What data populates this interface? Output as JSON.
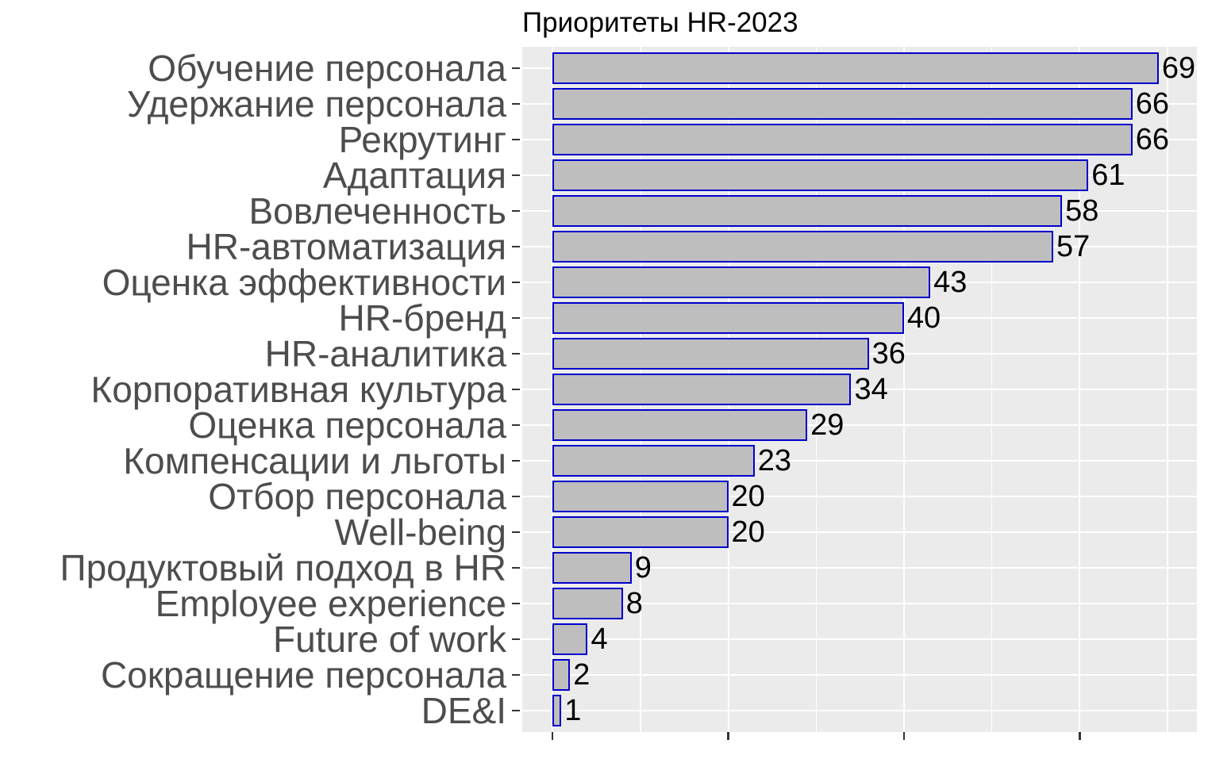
{
  "title": "Приоритеты HR-2023",
  "chart_data": {
    "type": "bar",
    "orientation": "horizontal",
    "title": "Приоритеты HR-2023",
    "categories": [
      "Обучение персонала",
      "Удержание персонала",
      "Рекрутинг",
      "Адаптация",
      "Вовлеченность",
      "HR-автоматизация",
      "Оценка эффективности",
      "HR-бренд",
      "HR-аналитика",
      "Корпоративная культура",
      "Оценка персонала",
      "Компенсации и льготы",
      "Отбор персонала",
      "Well-being",
      "Продуктовый подход в HR",
      "Employee experience",
      "Future of work",
      "Сокращение персонала",
      "DE&I"
    ],
    "values": [
      69,
      66,
      66,
      61,
      58,
      57,
      43,
      40,
      36,
      34,
      29,
      23,
      20,
      20,
      9,
      8,
      4,
      2,
      1
    ],
    "value_labels": [
      "69",
      "66",
      "66",
      "61",
      "58",
      "57",
      "43",
      "40",
      "36",
      "34",
      "29",
      "23",
      "20",
      "20",
      "9",
      "8",
      "4",
      "2",
      "1"
    ],
    "xlabel": "",
    "ylabel": "",
    "xlim": [
      -3.45,
      73.35
    ],
    "x_major_ticks": [
      0,
      20,
      40,
      60
    ],
    "x_minor_gridlines": [
      10,
      30,
      50,
      70
    ],
    "x_tick_labels_shown": false,
    "grid": true,
    "legend_position": "none",
    "colors": {
      "bar_fill": "#BEBEBE",
      "bar_border": "#0000CC",
      "panel_background": "#EBEBEB",
      "gridline": "#FFFFFF",
      "axis_text": "#4D4D4D",
      "value_label": "#000000",
      "title_text": "#000000",
      "tick_mark": "#333333",
      "plot_background": "#FFFFFF"
    }
  }
}
